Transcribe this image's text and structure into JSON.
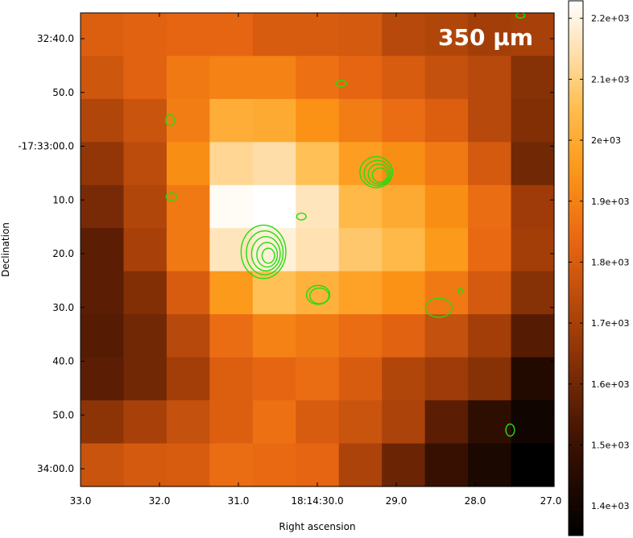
{
  "chart_data": {
    "type": "heatmap",
    "band_label": "350 μm",
    "xlabel": "Right ascension",
    "ylabel": "Declination",
    "x_ticks": [
      "33.0",
      "32.0",
      "31.0",
      "18:14:30.0",
      "29.0",
      "28.0",
      "27.0"
    ],
    "y_ticks": [
      "32:40.0",
      "50.0",
      "-17:33:00.0",
      "10.0",
      "20.0",
      "30.0",
      "40.0",
      "50.0",
      "34:00.0"
    ],
    "colorbar": {
      "ticks": [
        "2.2e+03",
        "2.1e+03",
        "2e+03",
        "1.9e+03",
        "1.8e+03",
        "1.7e+03",
        "1.6e+03",
        "1.5e+03",
        "1.4e+03"
      ],
      "tick_values": [
        2200,
        2100,
        2000,
        1900,
        1800,
        1700,
        1600,
        1500,
        1400
      ],
      "vmin": 1350,
      "vmax": 2230,
      "colormap": "orange-heat"
    },
    "grid": {
      "rows": 11,
      "cols": 11,
      "values": [
        [
          1810,
          1820,
          1830,
          1830,
          1800,
          1800,
          1790,
          1730,
          1720,
          1690,
          1700
        ],
        [
          1780,
          1820,
          1880,
          1900,
          1900,
          1860,
          1830,
          1800,
          1760,
          1730,
          1640
        ],
        [
          1720,
          1770,
          1890,
          2010,
          2000,
          1940,
          1890,
          1850,
          1810,
          1730,
          1630
        ],
        [
          1660,
          1740,
          1930,
          2120,
          2140,
          2060,
          1970,
          1930,
          1880,
          1790,
          1600
        ],
        [
          1610,
          1720,
          1880,
          2220,
          2230,
          2160,
          2040,
          2000,
          1930,
          1850,
          1680
        ],
        [
          1560,
          1700,
          1880,
          2160,
          2190,
          2150,
          2080,
          2040,
          1960,
          1840,
          1690
        ],
        [
          1560,
          1630,
          1800,
          1960,
          2060,
          2020,
          1980,
          1940,
          1880,
          1790,
          1640
        ],
        [
          1550,
          1600,
          1730,
          1850,
          1900,
          1880,
          1850,
          1820,
          1760,
          1690,
          1550
        ],
        [
          1560,
          1600,
          1690,
          1810,
          1830,
          1850,
          1800,
          1720,
          1680,
          1640,
          1440
        ],
        [
          1650,
          1700,
          1760,
          1810,
          1860,
          1800,
          1770,
          1710,
          1560,
          1470,
          1390
        ],
        [
          1770,
          1790,
          1800,
          1850,
          1840,
          1830,
          1710,
          1590,
          1490,
          1420,
          1350
        ]
      ]
    },
    "contours": [
      {
        "cx": 4.25,
        "cy": 5.55,
        "rx": 0.52,
        "ry": 0.62,
        "levels": 5
      },
      {
        "cx": 6.87,
        "cy": 3.7,
        "rx": 0.38,
        "ry": 0.36,
        "levels": 4
      },
      {
        "cx": 5.52,
        "cy": 6.55,
        "rx": 0.27,
        "ry": 0.22,
        "levels": 2
      },
      {
        "cx": 8.32,
        "cy": 6.85,
        "rx": 0.31,
        "ry": 0.22,
        "levels": 1
      },
      {
        "cx": 2.08,
        "cy": 2.49,
        "rx": 0.1,
        "ry": 0.13,
        "levels": 1
      },
      {
        "cx": 2.11,
        "cy": 4.27,
        "rx": 0.12,
        "ry": 0.09,
        "levels": 1
      },
      {
        "cx": 5.13,
        "cy": 4.73,
        "rx": 0.11,
        "ry": 0.08,
        "levels": 1
      },
      {
        "cx": 6.06,
        "cy": 1.64,
        "rx": 0.12,
        "ry": 0.07,
        "levels": 1
      },
      {
        "cx": 9.98,
        "cy": 9.69,
        "rx": 0.1,
        "ry": 0.14,
        "levels": 1
      },
      {
        "cx": 10.22,
        "cy": 0.06,
        "rx": 0.1,
        "ry": 0.06,
        "levels": 1
      },
      {
        "cx": 8.82,
        "cy": 6.46,
        "rx": 0.05,
        "ry": 0.06,
        "levels": 1
      }
    ],
    "contour_color": "#22dd11"
  }
}
